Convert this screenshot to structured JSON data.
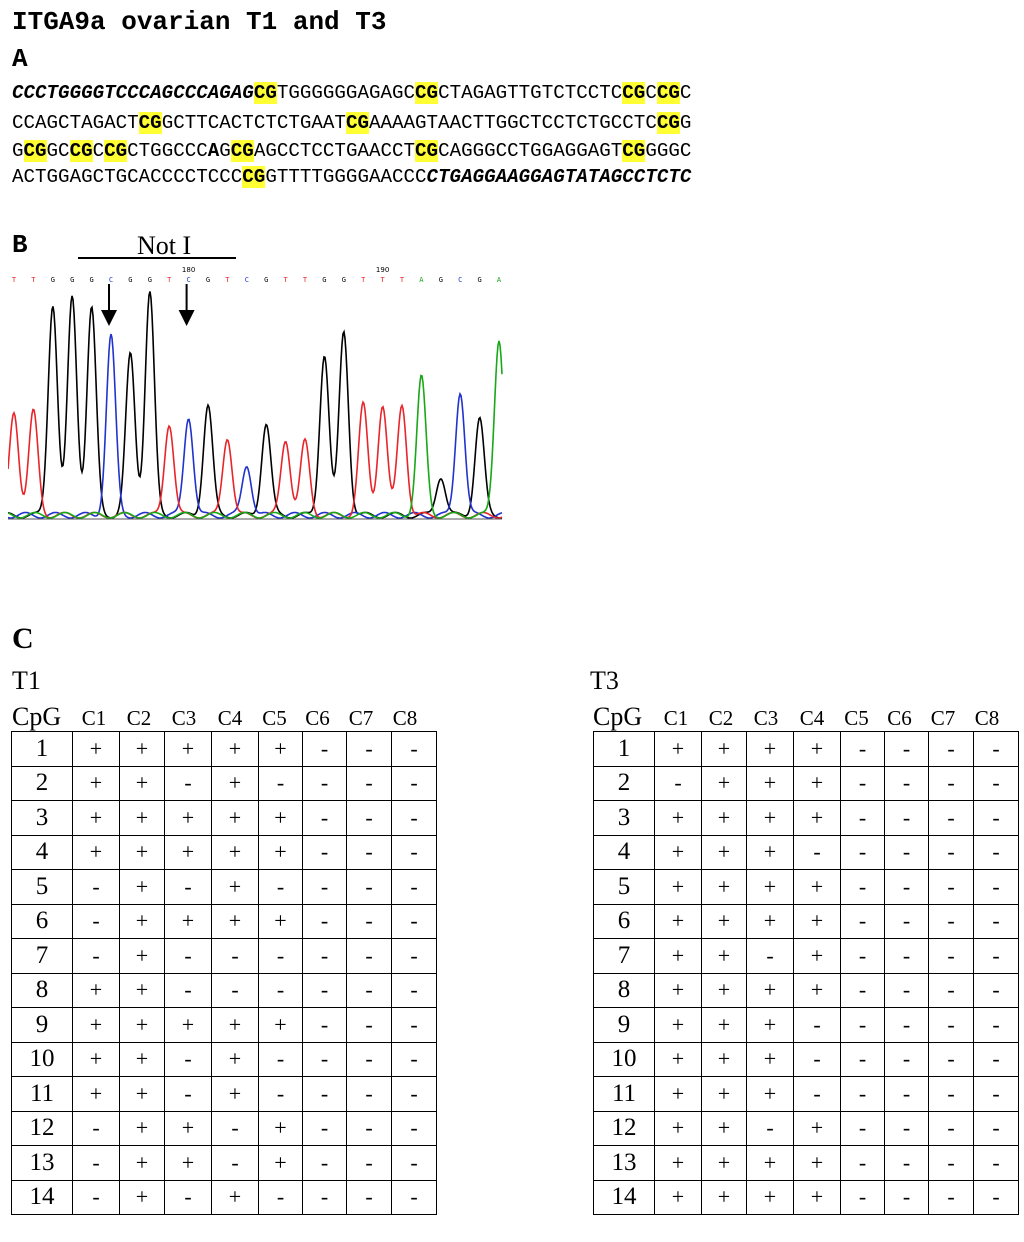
{
  "title": "ITGA9a ovarian T1 and T3",
  "panel_labels": {
    "a": "A",
    "b": "B",
    "c": "C"
  },
  "sequence_lines": [
    [
      {
        "t": "CCCTGGGGTCCCAGCCCAGAG",
        "s": "pri"
      },
      {
        "t": "CG",
        "s": "cg"
      },
      {
        "t": "TGGGGGGAGAGC",
        "s": ""
      },
      {
        "t": "CG",
        "s": "cg"
      },
      {
        "t": "CTAGAGTTGTCTCCTC",
        "s": ""
      },
      {
        "t": "CG",
        "s": "cg"
      },
      {
        "t": "C",
        "s": ""
      },
      {
        "t": "CG",
        "s": "cg"
      },
      {
        "t": "C",
        "s": ""
      }
    ],
    [
      {
        "t": "CCAGCTAGACT",
        "s": ""
      },
      {
        "t": "CG",
        "s": "cg"
      },
      {
        "t": "GCTTCACTCTCTGAAT",
        "s": ""
      },
      {
        "t": "CG",
        "s": "cg"
      },
      {
        "t": "AAAAGTAACTTGGCTCCTCTGCCTC",
        "s": ""
      },
      {
        "t": "CG",
        "s": "cg"
      },
      {
        "t": "G",
        "s": ""
      }
    ],
    [
      {
        "t": "G",
        "s": ""
      },
      {
        "t": "CG",
        "s": "cg"
      },
      {
        "t": "GC",
        "s": ""
      },
      {
        "t": "CG",
        "s": "cg"
      },
      {
        "t": "C",
        "s": ""
      },
      {
        "t": "CG",
        "s": "cg"
      },
      {
        "t": "CTGGCCC",
        "s": ""
      },
      {
        "t": "A",
        "s": "snp"
      },
      {
        "t": "G",
        "s": ""
      },
      {
        "t": "CG",
        "s": "cg"
      },
      {
        "t": "AGCCTCCTGAACCT",
        "s": ""
      },
      {
        "t": "CG",
        "s": "cg"
      },
      {
        "t": "CAGGGCCTGGAGGAGT",
        "s": ""
      },
      {
        "t": "CG",
        "s": "cg"
      },
      {
        "t": "GGGC",
        "s": ""
      }
    ],
    [
      {
        "t": "ACTGGAGCTGCACCCCTCCC",
        "s": ""
      },
      {
        "t": "CG",
        "s": "cg"
      },
      {
        "t": "GTTTTGGGGAACCC",
        "s": ""
      },
      {
        "t": "CTGAGGAAGGAGTATAGCCTCTC",
        "s": "pri"
      }
    ]
  ],
  "chromatogram": {
    "restriction_site_label": "Not I",
    "base_calls": [
      "T",
      "T",
      "G",
      "G",
      "G",
      "C",
      "G",
      "G",
      "T",
      "C",
      "G",
      "T",
      "C",
      "G",
      "T",
      "T",
      "G",
      "G",
      "T",
      "T",
      "T",
      "A",
      "G",
      "C",
      "G",
      "A"
    ],
    "position_markers": [
      {
        "label": "180",
        "base_index": 9
      },
      {
        "label": "190",
        "base_index": 19
      }
    ],
    "arrow_base_indices": [
      5,
      9
    ],
    "colors": {
      "T": "#e8252a",
      "G": "#000000",
      "C": "#2233cc",
      "A": "#18a818"
    },
    "peak_heights": [
      0.45,
      0.45,
      0.92,
      0.95,
      0.9,
      0.78,
      0.7,
      0.97,
      0.4,
      0.43,
      0.48,
      0.34,
      0.22,
      0.4,
      0.33,
      0.32,
      0.7,
      0.8,
      0.48,
      0.48,
      0.48,
      0.6,
      0.17,
      0.54,
      0.42,
      0.77
    ]
  },
  "tables": [
    {
      "label": "T1",
      "cpg_header": "CpG",
      "columns": [
        "C1",
        "C2",
        "C3",
        "C4",
        "C5",
        "C6",
        "C7",
        "C8"
      ],
      "rows": [
        {
          "n": "1",
          "v": [
            "+",
            "+",
            "+",
            "+",
            "+",
            "-",
            "-",
            "-"
          ]
        },
        {
          "n": "2",
          "v": [
            "+",
            "+",
            "-",
            "+",
            "-",
            "-",
            "-",
            "-"
          ]
        },
        {
          "n": "3",
          "v": [
            "+",
            "+",
            "+",
            "+",
            "+",
            "-",
            "-",
            "-"
          ]
        },
        {
          "n": "4",
          "v": [
            "+",
            "+",
            "+",
            "+",
            "+",
            "-",
            "-",
            "-"
          ]
        },
        {
          "n": "5",
          "v": [
            "-",
            "+",
            "-",
            "+",
            "-",
            "-",
            "-",
            "-"
          ]
        },
        {
          "n": "6",
          "v": [
            "-",
            "+",
            "+",
            "+",
            "+",
            "-",
            "-",
            "-"
          ]
        },
        {
          "n": "7",
          "v": [
            "-",
            "+",
            "-",
            "-",
            "-",
            "-",
            "-",
            "-"
          ]
        },
        {
          "n": "8",
          "v": [
            "+",
            "+",
            "-",
            "-",
            "-",
            "-",
            "-",
            "-"
          ]
        },
        {
          "n": "9",
          "v": [
            "+",
            "+",
            "+",
            "+",
            "+",
            "-",
            "-",
            "-"
          ]
        },
        {
          "n": "10",
          "v": [
            "+",
            "+",
            "-",
            "+",
            "-",
            "-",
            "-",
            "-"
          ]
        },
        {
          "n": "11",
          "v": [
            "+",
            "+",
            "-",
            "+",
            "-",
            "-",
            "-",
            "-"
          ]
        },
        {
          "n": "12",
          "v": [
            "-",
            "+",
            "+",
            "-",
            "+",
            "-",
            "-",
            "-"
          ]
        },
        {
          "n": "13",
          "v": [
            "-",
            "+",
            "+",
            "-",
            "+",
            "-",
            "-",
            "-"
          ]
        },
        {
          "n": "14",
          "v": [
            "-",
            "+",
            "-",
            "+",
            "-",
            "-",
            "-",
            "-"
          ]
        }
      ]
    },
    {
      "label": "T3",
      "cpg_header": "CpG",
      "columns": [
        "C1",
        "C2",
        "C3",
        "C4",
        "C5",
        "C6",
        "C7",
        "C8"
      ],
      "rows": [
        {
          "n": "1",
          "v": [
            "+",
            "+",
            "+",
            "+",
            "-",
            "-",
            "-",
            "-"
          ]
        },
        {
          "n": "2",
          "v": [
            "-",
            "+",
            "+",
            "+",
            "-",
            "-",
            "-",
            "-"
          ]
        },
        {
          "n": "3",
          "v": [
            "+",
            "+",
            "+",
            "+",
            "-",
            "-",
            "-",
            "-"
          ]
        },
        {
          "n": "4",
          "v": [
            "+",
            "+",
            "+",
            "-",
            "-",
            "-",
            "-",
            "-"
          ]
        },
        {
          "n": "5",
          "v": [
            "+",
            "+",
            "+",
            "+",
            "-",
            "-",
            "-",
            "-"
          ]
        },
        {
          "n": "6",
          "v": [
            "+",
            "+",
            "+",
            "+",
            "-",
            "-",
            "-",
            "-"
          ]
        },
        {
          "n": "7",
          "v": [
            "+",
            "+",
            "-",
            "+",
            "-",
            "-",
            "-",
            "-"
          ]
        },
        {
          "n": "8",
          "v": [
            "+",
            "+",
            "+",
            "+",
            "-",
            "-",
            "-",
            "-"
          ]
        },
        {
          "n": "9",
          "v": [
            "+",
            "+",
            "+",
            "-",
            "-",
            "-",
            "-",
            "-"
          ]
        },
        {
          "n": "10",
          "v": [
            "+",
            "+",
            "+",
            "-",
            "-",
            "-",
            "-",
            "-"
          ]
        },
        {
          "n": "11",
          "v": [
            "+",
            "+",
            "+",
            "-",
            "-",
            "-",
            "-",
            "-"
          ]
        },
        {
          "n": "12",
          "v": [
            "+",
            "+",
            "-",
            "+",
            "-",
            "-",
            "-",
            "-"
          ]
        },
        {
          "n": "13",
          "v": [
            "+",
            "+",
            "+",
            "+",
            "-",
            "-",
            "-",
            "-"
          ]
        },
        {
          "n": "14",
          "v": [
            "+",
            "+",
            "+",
            "+",
            "-",
            "-",
            "-",
            "-"
          ]
        }
      ]
    }
  ]
}
